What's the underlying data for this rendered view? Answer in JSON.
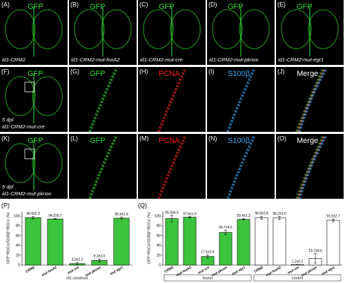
{
  "panels": [
    {
      "letter": "(A)",
      "stain": "GFP",
      "color": "#33dd33",
      "caption": "id1-CRM2"
    },
    {
      "letter": "(B)",
      "stain": "GFP",
      "color": "#33dd33",
      "caption": "id1-CRM2-mut-foxA2"
    },
    {
      "letter": "(C)",
      "stain": "GFP",
      "color": "#33dd33",
      "caption": "id1-CRM2-mut-cre"
    },
    {
      "letter": "(D)",
      "stain": "GFP",
      "color": "#33dd33",
      "caption": "id1-CRM2-mut-pknox"
    },
    {
      "letter": "(E)",
      "stain": "GFP",
      "color": "#33dd33",
      "caption": "id1-CRM2-mut-egr1"
    },
    {
      "letter": "(F)",
      "stain": "GFP",
      "color": "#33dd33",
      "note": "5 dpl",
      "caption": "id1-CRM2-mut-cre"
    },
    {
      "letter": "(G)",
      "stain": "GFP",
      "color": "#33dd33"
    },
    {
      "letter": "(H)",
      "stain": "PCNA",
      "color": "#ff2222"
    },
    {
      "letter": "(I)",
      "stain": "S100β",
      "color": "#33aaff"
    },
    {
      "letter": "(J)",
      "stain": "Merge",
      "color": "#ffffff"
    },
    {
      "letter": "(K)",
      "stain": "GFP",
      "color": "#33dd33",
      "note": "5 dpl",
      "caption": "id1-CRM2-mut-pknox"
    },
    {
      "letter": "(L)",
      "stain": "GFP",
      "color": "#33dd33"
    },
    {
      "letter": "(M)",
      "stain": "PCNA",
      "color": "#ff2222"
    },
    {
      "letter": "(N)",
      "stain": "S100β",
      "color": "#33aaff"
    },
    {
      "letter": "(O)",
      "stain": "Merge",
      "color": "#ffffff"
    }
  ],
  "chart_data": [
    {
      "type": "bar",
      "panel": "(P)",
      "ylabel": "GFP⁺RGCs/S100β⁺RGCs (%)",
      "xlabel": "id1 construct",
      "categories": [
        "CRM2",
        "mut foxA2",
        "mut cre",
        "mut pknox",
        "mut egr1"
      ],
      "values": [
        96.9,
        94.2,
        3.0,
        9.3,
        95.9
      ],
      "errors": [
        2.3,
        0.7,
        2.3,
        3.0,
        1.9
      ],
      "value_labels": [
        "96.9±2.3",
        "94.2±0.7",
        "3.0±2.3",
        "9.3±3.0",
        "95.9±1.9"
      ],
      "color": "#3cc43c",
      "ylim": [
        0,
        110
      ],
      "yticks": [
        0,
        20,
        40,
        60,
        80,
        100
      ]
    },
    {
      "type": "bar",
      "panel": "(Q)",
      "ylabel": "GFP⁺RGCs/S100β⁺RGCs (%)",
      "categories": [
        "CRM2",
        "mut foxA2",
        "mut cre",
        "mut pknox",
        "mut egr1"
      ],
      "series": [
        {
          "name": "lesion",
          "color": "#3cc43c",
          "values": [
            95.0,
            97.8,
            17.5,
            66.7,
            93.4
          ],
          "errors": [
            6.5,
            1.0,
            3.4,
            4.5,
            1.3
          ],
          "value_labels": [
            "95.0±6.5",
            "97.8±1.0",
            "17.5±3.4",
            "66.7±4.5",
            "93.4±1.3"
          ]
        },
        {
          "name": "control",
          "color": "#ffffff",
          "values": [
            96.8,
            96.2,
            1.2,
            13.7,
            91.5
          ],
          "errors": [
            2.8,
            3.0,
            0.2,
            9.5,
            2.7
          ],
          "value_labels": [
            "96.8±2.8",
            "96.2±3.0",
            "1.2±0.2",
            "13.7±9.5",
            "91.5±2.7"
          ]
        }
      ],
      "ylim": [
        0,
        110
      ],
      "yticks": [
        0,
        20,
        40,
        60,
        80,
        100
      ]
    }
  ]
}
